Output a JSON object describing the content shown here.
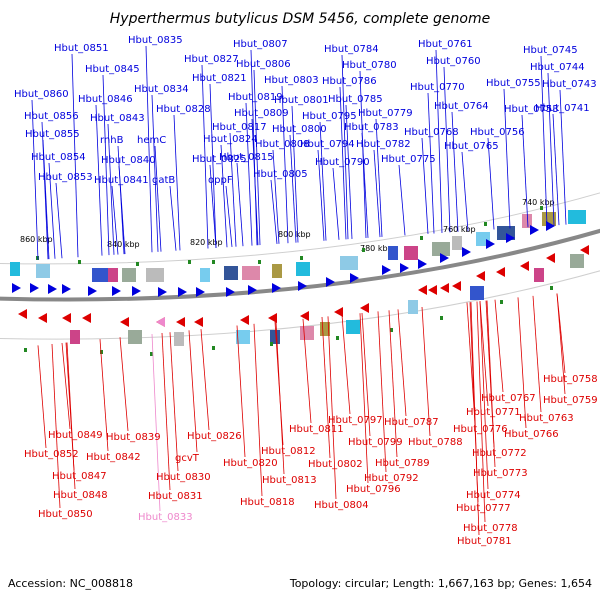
{
  "title": "Hyperthermus butylicus DSM 5456, complete genome",
  "footer": {
    "accession": "Accession: NC_008818",
    "summary": "Topology: circular; Length: 1,667,163 bp; Genes: 1,654"
  },
  "colors": {
    "forward": "#0000dd",
    "reverse": "#dd0000",
    "pseudo": "#ee88cc",
    "backbone": "#888888",
    "marker": "#228822"
  },
  "ruler": [
    "860 kbp",
    "840 kbp",
    "820 kbp",
    "800 kbp",
    "780 kbp",
    "760 kbp",
    "740 kbp"
  ],
  "top_genes": [
    "Hbut_0851",
    "Hbut_0835",
    "Hbut_0807",
    "Hbut_0784",
    "Hbut_0761",
    "Hbut_0745",
    "Hbut_0845",
    "Hbut_0827",
    "Hbut_0806",
    "Hbut_0780",
    "Hbut_0760",
    "Hbut_0744",
    "Hbut_0821",
    "Hbut_0803",
    "Hbut_0786",
    "Hbut_0770",
    "Hbut_0755",
    "Hbut_0743",
    "Hbut_0860",
    "Hbut_0846",
    "Hbut_0834",
    "Hbut_0819",
    "Hbut_0801",
    "Hbut_0785",
    "Hbut_0764",
    "Hbut_0753",
    "Hbut_0741",
    "Hbut_0856",
    "Hbut_0843",
    "Hbut_0828",
    "Hbut_0809",
    "Hbut_0795",
    "Hbut_0779",
    "Hbut_0855",
    "rnhB",
    "Hbut_0817",
    "Hbut_0800",
    "Hbut_0783",
    "Hbut_0768",
    "Hbut_0756",
    "hemC",
    "Hbut_0824",
    "Hbut_0808",
    "Hbut_0794",
    "Hbut_0782",
    "Hbut_0765",
    "Hbut_0854",
    "Hbut_0840",
    "Hbut_0825",
    "Hbut_0815",
    "Hbut_0790",
    "Hbut_0775",
    "Hbut_0853",
    "Hbut_0841",
    "gatB",
    "oppF",
    "Hbut_0805"
  ],
  "bottom_genes": [
    "Hbut_0758",
    "Hbut_0767",
    "Hbut_0759",
    "Hbut_0771",
    "Hbut_0763",
    "Hbut_0766",
    "Hbut_0797",
    "Hbut_0787",
    "Hbut_0776",
    "Hbut_0811",
    "Hbut_0849",
    "Hbut_0839",
    "Hbut_0826",
    "Hbut_0799",
    "Hbut_0788",
    "Hbut_0772",
    "Hbut_0852",
    "Hbut_0842",
    "gcvT",
    "Hbut_0812",
    "Hbut_0802",
    "Hbut_0789",
    "Hbut_0847",
    "Hbut_0820",
    "Hbut_0830",
    "Hbut_0813",
    "Hbut_0792",
    "Hbut_0773",
    "Hbut_0848",
    "Hbut_0831",
    "Hbut_0796",
    "Hbut_0774",
    "Hbut_0818",
    "Hbut_0804",
    "Hbut_0850",
    "Hbut_0777",
    "Hbut_0833",
    "Hbut_0778",
    "Hbut_0781"
  ],
  "pseudo_genes": [
    "Hbut_0833"
  ]
}
